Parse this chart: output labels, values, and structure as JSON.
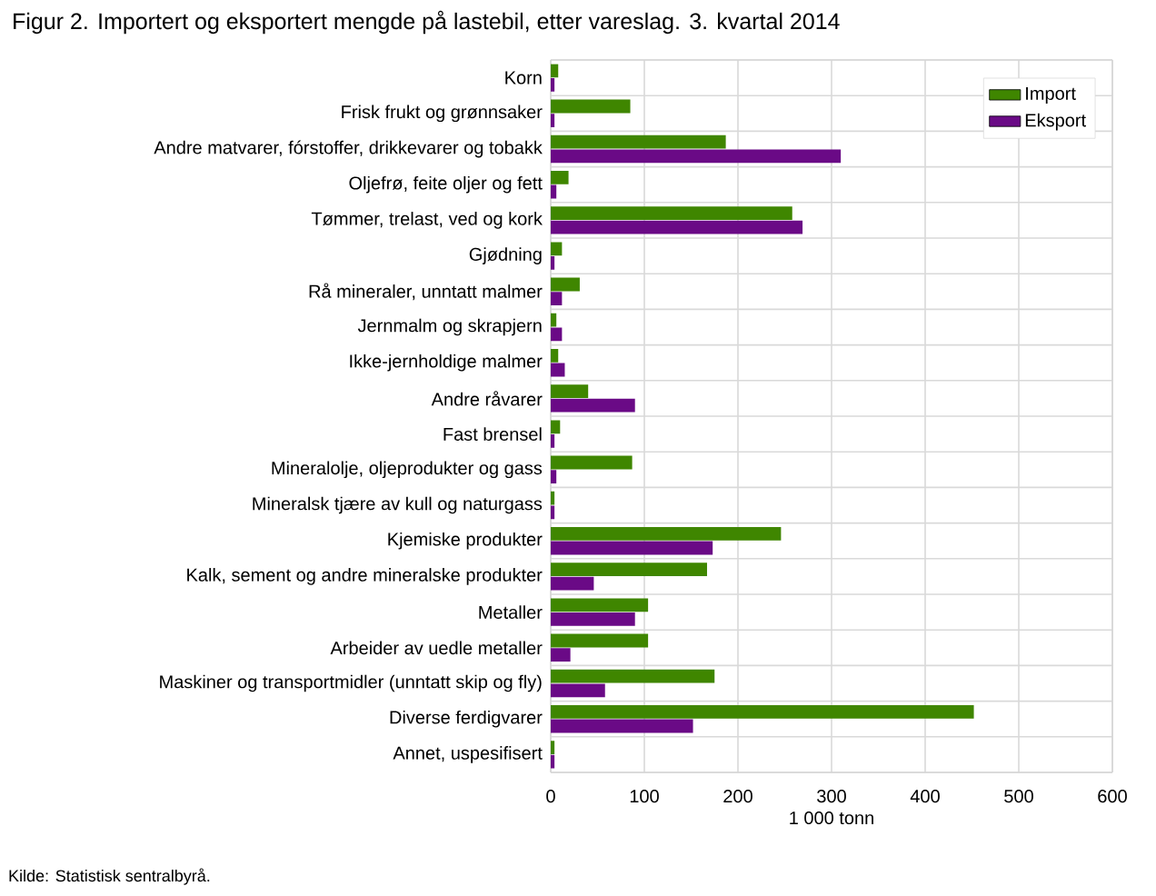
{
  "chart_data": {
    "type": "bar",
    "orientation": "horizontal",
    "title": "Figur 2. Importert og eksportert mengde på lastebil, etter vareslag. 3. kvartal 2014",
    "xlabel": "1 000 tonn",
    "annotations": [
      "Kilde: Statistisk sentralbyrå."
    ],
    "categories": [
      "Korn",
      "Frisk frukt og grønnsaker",
      "Andre matvarer, fórstoffer, drikkevarer og tobakk",
      "Oljefrø, feite oljer og fett",
      "Tømmer, trelast, ved og kork",
      "Gjødning",
      "Rå mineraler, unntatt malmer",
      "Jernmalm og skrapjern",
      "Ikke-jernholdige malmer",
      "Andre råvarer",
      "Fast brensel",
      "Mineralolje, oljeprodukter og gass",
      "Mineralsk tjære av kull og naturgass",
      "Kjemiske produkter",
      "Kalk, sement og andre mineralske produkter",
      "Metaller",
      "Arbeider av uedle metaller",
      "Maskiner og transportmidler (unntatt skip og fly)",
      "Diverse ferdigvarer",
      "Annet, uspesifisert"
    ],
    "series": [
      {
        "name": "Import",
        "color": "#3f8600",
        "values": [
          8,
          85,
          187,
          19,
          258,
          12,
          31,
          6,
          8,
          40,
          10,
          87,
          4,
          246,
          167,
          104,
          104,
          175,
          452,
          4
        ]
      },
      {
        "name": "Eksport",
        "color": "#6a0a86",
        "values": [
          4,
          4,
          310,
          6,
          269,
          4,
          12,
          12,
          15,
          90,
          4,
          6,
          4,
          173,
          46,
          90,
          21,
          58,
          152,
          4
        ]
      }
    ],
    "xlim": [
      0,
      600
    ],
    "xticks": [
      0,
      100,
      200,
      300,
      400,
      500,
      600
    ],
    "grid": true,
    "legend": "top right"
  }
}
